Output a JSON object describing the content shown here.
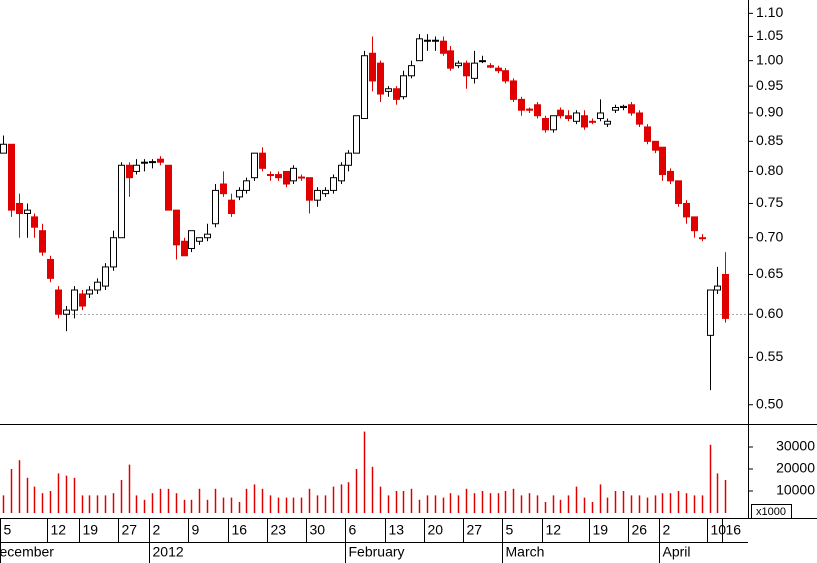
{
  "chart_data": {
    "type": "candlestick",
    "log_scale": true,
    "up_color": "#ffffff",
    "down_color": "#e00000",
    "volume_color": "#e00000",
    "reference_line": 0.6,
    "categories": [
      "5",
      null,
      null,
      null,
      null,
      null,
      "12",
      null,
      null,
      null,
      "19",
      null,
      null,
      null,
      null,
      "27",
      null,
      null,
      null,
      "2",
      null,
      null,
      null,
      null,
      "9",
      null,
      null,
      null,
      null,
      "16",
      null,
      null,
      null,
      null,
      "23",
      null,
      null,
      null,
      null,
      "30",
      null,
      null,
      null,
      null,
      "6",
      null,
      null,
      null,
      null,
      "13",
      null,
      null,
      null,
      null,
      "20",
      null,
      null,
      null,
      null,
      "27",
      null,
      null,
      null,
      null,
      "5",
      null,
      null,
      null,
      null,
      "12",
      null,
      null,
      null,
      null,
      null,
      "19",
      null,
      null,
      null,
      null,
      "26",
      null,
      null,
      null,
      "2",
      null,
      null,
      null,
      null,
      null,
      "10",
      null,
      "16"
    ],
    "months": [
      "ecember",
      null,
      null,
      null,
      null,
      null,
      null,
      null,
      null,
      null,
      null,
      null,
      null,
      null,
      null,
      null,
      null,
      null,
      null,
      "2012",
      null,
      null,
      null,
      null,
      null,
      null,
      null,
      null,
      null,
      null,
      null,
      null,
      null,
      null,
      null,
      null,
      null,
      null,
      null,
      null,
      null,
      null,
      null,
      null,
      "February",
      null,
      null,
      null,
      null,
      null,
      null,
      null,
      null,
      null,
      null,
      null,
      null,
      null,
      null,
      null,
      null,
      null,
      null,
      null,
      "March",
      null,
      null,
      null,
      null,
      null,
      null,
      null,
      null,
      null,
      null,
      null,
      null,
      null,
      null,
      null,
      null,
      null,
      null,
      null,
      "April",
      null,
      null,
      null,
      null,
      null,
      null,
      null,
      null
    ],
    "open": [
      0.83,
      0.845,
      0.75,
      0.735,
      0.73,
      0.71,
      0.67,
      0.63,
      0.6,
      0.605,
      0.625,
      0.625,
      0.63,
      0.635,
      0.66,
      0.7,
      0.81,
      0.8,
      0.814,
      0.815,
      0.82,
      0.81,
      0.74,
      0.695,
      0.685,
      0.695,
      0.7,
      0.72,
      0.78,
      0.755,
      0.76,
      0.77,
      0.79,
      0.83,
      0.795,
      0.795,
      0.8,
      0.785,
      0.791,
      0.79,
      0.755,
      0.765,
      0.77,
      0.785,
      0.81,
      0.83,
      0.89,
      1.015,
      0.995,
      0.94,
      0.945,
      0.93,
      0.97,
      1.0,
      1.04,
      1.04,
      1.04,
      1.02,
      0.99,
      0.995,
      0.965,
      0.998,
      0.99,
      0.985,
      0.98,
      0.96,
      0.925,
      0.907,
      0.915,
      0.89,
      0.87,
      0.905,
      0.895,
      0.885,
      0.895,
      0.885,
      0.89,
      0.88,
      0.905,
      0.91,
      0.915,
      0.9,
      0.875,
      0.85,
      0.84,
      0.8,
      0.785,
      0.75,
      0.73,
      0.7,
      0.575,
      0.63,
      0.65
    ],
    "high": [
      0.86,
      0.845,
      0.765,
      0.75,
      0.735,
      0.72,
      0.675,
      0.635,
      0.61,
      0.635,
      0.63,
      0.635,
      0.645,
      0.665,
      0.71,
      0.815,
      0.815,
      0.82,
      0.82,
      0.82,
      0.825,
      0.81,
      0.74,
      0.7,
      0.71,
      0.7,
      0.72,
      0.78,
      0.8,
      0.765,
      0.775,
      0.79,
      0.83,
      0.84,
      0.8,
      0.8,
      0.8,
      0.81,
      0.795,
      0.79,
      0.775,
      0.775,
      0.795,
      0.815,
      0.835,
      0.895,
      1.02,
      1.05,
      1.0,
      0.95,
      0.95,
      0.98,
      1.0,
      1.055,
      1.055,
      1.05,
      1.05,
      1.03,
      1.0,
      1.0,
      1.02,
      1.01,
      0.995,
      0.99,
      0.985,
      0.965,
      0.93,
      0.91,
      0.92,
      0.895,
      0.895,
      0.91,
      0.905,
      0.905,
      0.905,
      0.89,
      0.925,
      0.89,
      0.915,
      0.915,
      0.92,
      0.905,
      0.88,
      0.85,
      0.84,
      0.805,
      0.785,
      0.755,
      0.73,
      0.705,
      0.63,
      0.66,
      0.68
    ],
    "low": [
      0.83,
      0.73,
      0.7,
      0.7,
      0.7,
      0.675,
      0.64,
      0.595,
      0.58,
      0.595,
      0.605,
      0.62,
      0.625,
      0.63,
      0.655,
      0.7,
      0.76,
      0.795,
      0.8,
      0.805,
      0.81,
      0.74,
      0.67,
      0.675,
      0.68,
      0.69,
      0.695,
      0.715,
      0.76,
      0.73,
      0.755,
      0.765,
      0.785,
      0.8,
      0.785,
      0.785,
      0.775,
      0.78,
      0.785,
      0.735,
      0.745,
      0.76,
      0.765,
      0.78,
      0.8,
      0.83,
      0.89,
      0.94,
      0.92,
      0.93,
      0.915,
      0.925,
      0.965,
      1.0,
      1.02,
      1.02,
      1.01,
      0.98,
      0.985,
      0.945,
      0.955,
      0.995,
      0.985,
      0.975,
      0.955,
      0.92,
      0.895,
      0.9,
      0.89,
      0.865,
      0.865,
      0.89,
      0.885,
      0.88,
      0.87,
      0.88,
      0.885,
      0.875,
      0.9,
      0.905,
      0.895,
      0.875,
      0.845,
      0.83,
      0.785,
      0.78,
      0.745,
      0.72,
      0.7,
      0.695,
      0.515,
      0.625,
      0.59
    ],
    "close": [
      0.845,
      0.74,
      0.735,
      0.74,
      0.715,
      0.68,
      0.645,
      0.6,
      0.605,
      0.63,
      0.61,
      0.63,
      0.64,
      0.66,
      0.7,
      0.81,
      0.79,
      0.81,
      0.815,
      0.816,
      0.815,
      0.74,
      0.69,
      0.675,
      0.71,
      0.7,
      0.705,
      0.77,
      0.765,
      0.735,
      0.77,
      0.785,
      0.83,
      0.805,
      0.794,
      0.79,
      0.78,
      0.805,
      0.79,
      0.755,
      0.77,
      0.77,
      0.79,
      0.81,
      0.83,
      0.895,
      1.01,
      0.96,
      0.935,
      0.945,
      0.925,
      0.97,
      0.99,
      1.045,
      1.042,
      1.042,
      1.015,
      0.985,
      0.995,
      0.97,
      0.995,
      1.0,
      0.987,
      0.98,
      0.96,
      0.925,
      0.905,
      0.905,
      0.895,
      0.87,
      0.895,
      0.895,
      0.89,
      0.9,
      0.875,
      0.884,
      0.9,
      0.885,
      0.91,
      0.912,
      0.9,
      0.88,
      0.85,
      0.835,
      0.795,
      0.785,
      0.75,
      0.73,
      0.71,
      0.699,
      0.63,
      0.635,
      0.595
    ],
    "volume": [
      8000,
      20000,
      24000,
      16000,
      12000,
      9000,
      10000,
      18000,
      17000,
      16000,
      8000,
      8000,
      8000,
      8000,
      9000,
      15000,
      22000,
      8000,
      6000,
      9000,
      11000,
      11000,
      9000,
      6000,
      6000,
      11000,
      6000,
      11000,
      7000,
      7000,
      5000,
      11000,
      13000,
      11000,
      8000,
      7000,
      7000,
      7000,
      7000,
      11000,
      8000,
      8000,
      12000,
      13000,
      14000,
      20000,
      37000,
      21000,
      12000,
      8000,
      10000,
      10000,
      11000,
      6000,
      8000,
      8000,
      7000,
      9000,
      8000,
      11000,
      9000,
      10000,
      9000,
      9000,
      10000,
      11000,
      8000,
      9000,
      8000,
      5000,
      8000,
      6000,
      8000,
      12000,
      7000,
      5000,
      13000,
      7000,
      10000,
      10000,
      8000,
      8000,
      7000,
      8000,
      9000,
      9000,
      10000,
      9000,
      8000,
      8000,
      31000,
      18000,
      15000
    ],
    "ylim": [
      0.48,
      1.13
    ],
    "yticks": [
      {
        "value": 1.1,
        "label": "1.10"
      },
      1.05,
      {
        "value": 1.0,
        "label": "1.00"
      },
      0.95,
      {
        "value": 0.9,
        "label": "0.90"
      },
      0.85,
      {
        "value": 0.8,
        "label": "0.80"
      },
      0.75,
      {
        "value": 0.7,
        "label": "0.70"
      },
      0.65,
      {
        "value": 0.6,
        "label": "0.60"
      },
      0.55,
      {
        "value": 0.5,
        "label": "0.50"
      }
    ],
    "volume_ylim": [
      0,
      40000
    ],
    "volume_yticks": [
      10000,
      20000,
      30000
    ],
    "volume_unit": "x1000"
  }
}
